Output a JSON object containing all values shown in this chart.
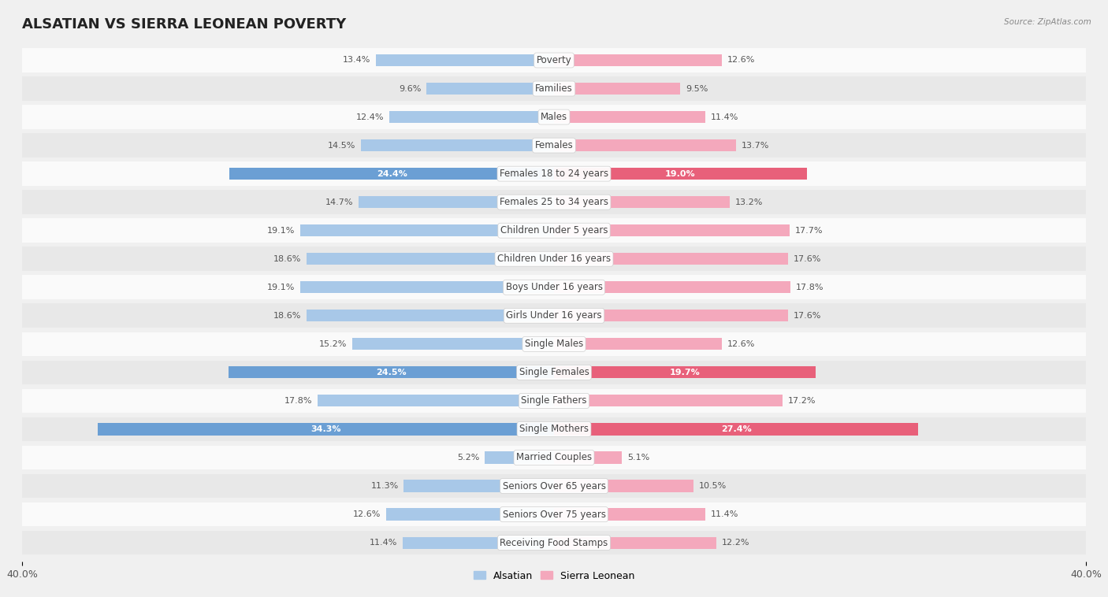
{
  "title": "ALSATIAN VS SIERRA LEONEAN POVERTY",
  "source": "Source: ZipAtlas.com",
  "categories": [
    "Poverty",
    "Families",
    "Males",
    "Females",
    "Females 18 to 24 years",
    "Females 25 to 34 years",
    "Children Under 5 years",
    "Children Under 16 years",
    "Boys Under 16 years",
    "Girls Under 16 years",
    "Single Males",
    "Single Females",
    "Single Fathers",
    "Single Mothers",
    "Married Couples",
    "Seniors Over 65 years",
    "Seniors Over 75 years",
    "Receiving Food Stamps"
  ],
  "alsatian": [
    13.4,
    9.6,
    12.4,
    14.5,
    24.4,
    14.7,
    19.1,
    18.6,
    19.1,
    18.6,
    15.2,
    24.5,
    17.8,
    34.3,
    5.2,
    11.3,
    12.6,
    11.4
  ],
  "sierra_leonean": [
    12.6,
    9.5,
    11.4,
    13.7,
    19.0,
    13.2,
    17.7,
    17.6,
    17.8,
    17.6,
    12.6,
    19.7,
    17.2,
    27.4,
    5.1,
    10.5,
    11.4,
    12.2
  ],
  "alsatian_color": "#a8c8e8",
  "sierra_leonean_color": "#f4a8bc",
  "alsatian_highlight_color": "#6b9fd4",
  "sierra_leonean_highlight_color": "#e8607a",
  "highlight_rows": [
    4,
    11,
    13
  ],
  "background_color": "#f0f0f0",
  "row_bg_light": "#fafafa",
  "row_bg_dark": "#e8e8e8",
  "max_val": 40.0,
  "legend_alsatian": "Alsatian",
  "legend_sierra": "Sierra Leonean",
  "title_fontsize": 13,
  "label_fontsize": 8.5,
  "value_fontsize": 8
}
